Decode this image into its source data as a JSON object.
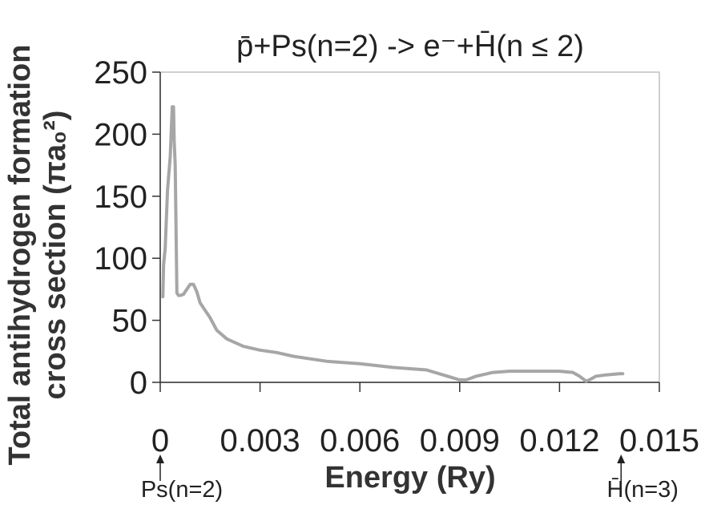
{
  "chart_data": {
    "type": "line",
    "title": "p̄+Ps(n=2) -> e⁻+H̄(n ≤ 2)",
    "xlabel": "Energy (Ry)",
    "ylabel_line1": "Total antihydrogen formation",
    "ylabel_line2": "cross section (πa₀²)",
    "x_ticks": [
      0,
      0.003,
      0.006,
      0.009,
      0.012,
      0.015
    ],
    "x_tick_labels": [
      "0",
      "0.003",
      "0.006",
      "0.009",
      "0.012",
      "0.015"
    ],
    "y_ticks": [
      0,
      50,
      100,
      150,
      200,
      250
    ],
    "y_tick_labels": [
      "0",
      "50",
      "100",
      "150",
      "200",
      "250"
    ],
    "xlim": [
      0,
      0.015
    ],
    "ylim": [
      0,
      250
    ],
    "grid": false,
    "line_color": "#a6a6a6",
    "series": [
      {
        "x": [
          8e-05,
          0.0001,
          0.00015,
          0.00022,
          0.0003,
          0.00036,
          0.0004,
          0.00042,
          0.00045,
          0.0005,
          0.00055,
          0.0006,
          0.0007,
          0.0008,
          0.0009,
          0.001,
          0.0011,
          0.0012,
          0.0013,
          0.0015,
          0.0017,
          0.002,
          0.0025,
          0.003,
          0.0035,
          0.004,
          0.005,
          0.006,
          0.007,
          0.008,
          0.0085,
          0.009,
          0.0092,
          0.0095,
          0.01,
          0.0105,
          0.011,
          0.012,
          0.0124,
          0.0126,
          0.0128,
          0.0129,
          0.0131,
          0.0134,
          0.0138,
          0.0139
        ],
        "y": [
          69,
          95,
          108,
          155,
          182,
          222,
          222,
          195,
          175,
          72,
          70,
          70,
          71,
          75,
          79,
          79,
          73,
          64,
          60,
          52,
          42,
          35,
          29,
          26,
          24,
          21,
          17,
          15,
          12,
          10,
          6,
          2,
          2,
          5,
          8,
          9,
          9,
          9,
          8,
          5,
          1,
          2,
          5,
          6,
          7,
          7
        ]
      }
    ],
    "annotations": [
      {
        "x": 0,
        "label": "Ps(n=2)"
      },
      {
        "x": 0.01385,
        "label": "H̄(n=3)"
      }
    ]
  }
}
